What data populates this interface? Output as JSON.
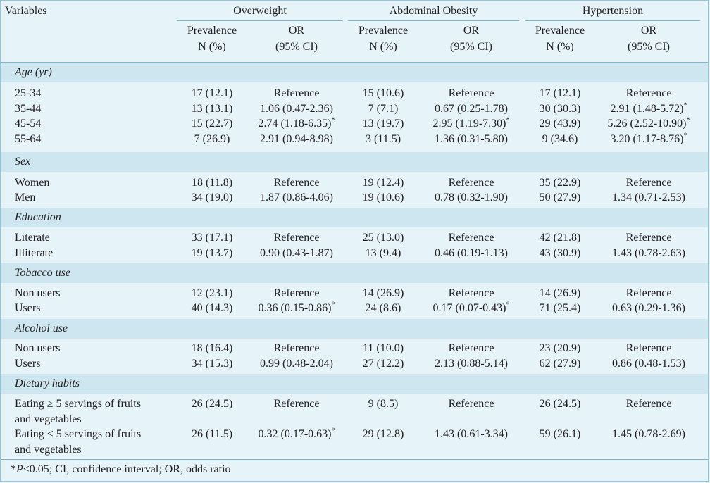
{
  "header": {
    "variables": "Variables",
    "groups": [
      "Overweight",
      "Abdominal Obesity",
      "Hypertension"
    ],
    "prev_line1": "Prevalence",
    "prev_line2": "N (%)",
    "or_line1": "OR",
    "or_line2": "(95% CI)"
  },
  "sections": [
    {
      "title": "Age (yr)",
      "rows": [
        {
          "label": "25-34",
          "cells": [
            "17 (12.1)",
            "Reference",
            "15 (10.6)",
            "Reference",
            "17 (12.1)",
            "Reference"
          ],
          "sig": [
            false,
            false,
            false
          ]
        },
        {
          "label": "35-44",
          "cells": [
            "13 (13.1)",
            "1.06 (0.47-2.36)",
            "7 (7.1)",
            "0.67 (0.25-1.78)",
            "30 (30.3)",
            "2.91 (1.48-5.72)"
          ],
          "sig": [
            false,
            false,
            true
          ]
        },
        {
          "label": "45-54",
          "cells": [
            "15 (22.7)",
            "2.74 (1.18-6.35)",
            "13 (19.7)",
            "2.95 (1.19-7.30)",
            "29 (43.9)",
            "5.26 (2.52-10.90)"
          ],
          "sig": [
            true,
            true,
            true
          ]
        },
        {
          "label": "55-64",
          "cells": [
            "7 (26.9)",
            "2.91 (0.94-8.98)",
            "3 (11.5)",
            "1.36 (0.31-5.80)",
            "9 (34.6)",
            "3.20 (1.17-8.76)"
          ],
          "sig": [
            false,
            false,
            true
          ]
        }
      ]
    },
    {
      "title": "Sex",
      "rows": [
        {
          "label": "Women",
          "cells": [
            "18 (11.8)",
            "Reference",
            "19 (12.4)",
            "Reference",
            "35 (22.9)",
            "Reference"
          ],
          "sig": [
            false,
            false,
            false
          ]
        },
        {
          "label": "Men",
          "cells": [
            "34 (19.0)",
            "1.87 (0.86-4.06)",
            "19 (10.6)",
            "0.78 (0.32-1.90)",
            "50 (27.9)",
            "1.34 (0.71-2.53)"
          ],
          "sig": [
            false,
            false,
            false
          ]
        }
      ]
    },
    {
      "title": "Education",
      "rows": [
        {
          "label": "Literate",
          "cells": [
            "33 (17.1)",
            "Reference",
            "25 (13.0)",
            "Reference",
            "42 (21.8)",
            "Reference"
          ],
          "sig": [
            false,
            false,
            false
          ]
        },
        {
          "label": "Illiterate",
          "cells": [
            "19 (13.7)",
            "0.90 (0.43-1.87)",
            "13 (9.4)",
            "0.46 (0.19-1.13)",
            "43 (30.9)",
            "1.43 (0.78-2.63)"
          ],
          "sig": [
            false,
            false,
            false
          ]
        }
      ]
    },
    {
      "title": "Tobacco use",
      "rows": [
        {
          "label": "Non users",
          "cells": [
            "12 (23.1)",
            "Reference",
            "14 (26.9)",
            "Reference",
            "14 (26.9)",
            "Reference"
          ],
          "sig": [
            false,
            false,
            false
          ]
        },
        {
          "label": "Users",
          "cells": [
            "40 (14.3)",
            "0.36 (0.15-0.86)",
            "24 (8.6)",
            "0.17 (0.07-0.43)",
            "71 (25.4)",
            "0.63 (0.29-1.36)"
          ],
          "sig": [
            true,
            true,
            false
          ]
        }
      ]
    },
    {
      "title": "Alcohol use",
      "rows": [
        {
          "label": "Non users",
          "cells": [
            "18 (16.4)",
            "Reference",
            "11 (10.0)",
            "Reference",
            "23 (20.9)",
            "Reference"
          ],
          "sig": [
            false,
            false,
            false
          ]
        },
        {
          "label": "Users",
          "cells": [
            "34 (15.3)",
            "0.99 (0.48-2.04)",
            "27 (12.2)",
            "2.13 (0.88-5.14)",
            "62 (27.9)",
            "0.86 (0.48-1.53)"
          ],
          "sig": [
            false,
            false,
            false
          ]
        }
      ]
    },
    {
      "title": "Dietary habits",
      "rows": [
        {
          "label": "Eating ≥ 5 servings of fruits",
          "label2": "and vegetables",
          "cells": [
            "26 (24.5)",
            "Reference",
            "9 (8.5)",
            "Reference",
            "26 (24.5)",
            "Reference"
          ],
          "sig": [
            false,
            false,
            false
          ]
        },
        {
          "label": "Eating < 5 servings of fruits",
          "label2": "and vegetables",
          "cells": [
            "26 (11.5)",
            "0.32 (0.17-0.63)",
            "29 (12.8)",
            "1.43 (0.61-3.34)",
            "59 (26.1)",
            "1.45 (0.78-2.69)"
          ],
          "sig": [
            true,
            false,
            false
          ]
        }
      ]
    }
  ],
  "footnote": {
    "star": "*",
    "p": "P",
    "rest": "<0.05; CI, confidence interval; OR, odds ratio"
  },
  "sig_mark": "*"
}
